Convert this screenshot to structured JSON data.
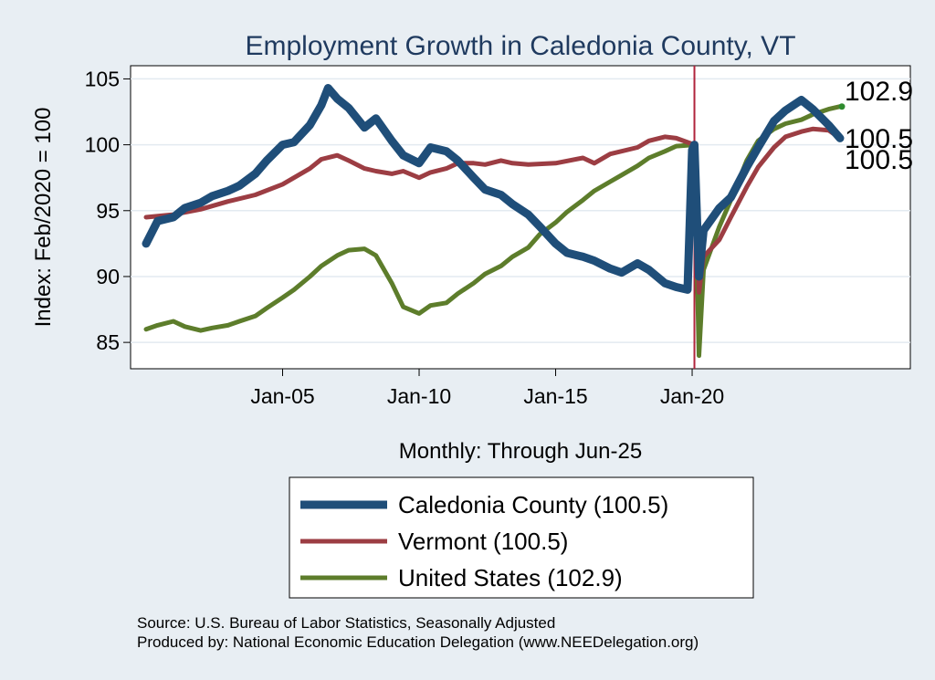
{
  "chart_data": {
    "type": "line",
    "title": "Employment Growth in Caledonia  County, VT",
    "xlabel": "Monthly: Through Jun-25",
    "ylabel": "Index: Feb/2020 = 100",
    "x_range": [
      "2000-01",
      "2025-06"
    ],
    "x_ticks": [
      {
        "date": "2005-01",
        "label": "Jan-05"
      },
      {
        "date": "2010-01",
        "label": "Jan-10"
      },
      {
        "date": "2015-01",
        "label": "Jan-15"
      },
      {
        "date": "2020-01",
        "label": "Jan-20"
      }
    ],
    "ylim": [
      83,
      106
    ],
    "y_ticks": [
      85,
      90,
      95,
      100,
      105
    ],
    "grid": "horizontal",
    "reference_line": {
      "date": "2020-02",
      "color": "#b0243c"
    },
    "series": [
      {
        "name": "Caledonia  County (100.5)",
        "color": "#1f4e79",
        "end_label": "100.5",
        "points": [
          [
            "2000-01",
            92.5
          ],
          [
            "2000-06",
            94.2
          ],
          [
            "2001-01",
            94.5
          ],
          [
            "2001-06",
            95.2
          ],
          [
            "2002-01",
            95.6
          ],
          [
            "2002-06",
            96.1
          ],
          [
            "2003-01",
            96.5
          ],
          [
            "2003-06",
            96.9
          ],
          [
            "2004-01",
            97.8
          ],
          [
            "2004-06",
            98.8
          ],
          [
            "2005-01",
            100.0
          ],
          [
            "2005-06",
            100.2
          ],
          [
            "2006-01",
            101.5
          ],
          [
            "2006-06",
            103.0
          ],
          [
            "2006-09",
            104.3
          ],
          [
            "2007-01",
            103.5
          ],
          [
            "2007-06",
            102.8
          ],
          [
            "2008-01",
            101.3
          ],
          [
            "2008-06",
            102.0
          ],
          [
            "2009-01",
            100.3
          ],
          [
            "2009-06",
            99.2
          ],
          [
            "2010-01",
            98.6
          ],
          [
            "2010-06",
            99.8
          ],
          [
            "2011-01",
            99.5
          ],
          [
            "2011-06",
            98.8
          ],
          [
            "2012-01",
            97.5
          ],
          [
            "2012-06",
            96.6
          ],
          [
            "2013-01",
            96.2
          ],
          [
            "2013-06",
            95.5
          ],
          [
            "2014-01",
            94.7
          ],
          [
            "2014-06",
            93.8
          ],
          [
            "2015-01",
            92.5
          ],
          [
            "2015-06",
            91.8
          ],
          [
            "2016-01",
            91.5
          ],
          [
            "2016-06",
            91.2
          ],
          [
            "2017-01",
            90.6
          ],
          [
            "2017-06",
            90.3
          ],
          [
            "2018-01",
            91.0
          ],
          [
            "2018-06",
            90.5
          ],
          [
            "2019-01",
            89.5
          ],
          [
            "2019-06",
            89.2
          ],
          [
            "2019-11",
            89.0
          ],
          [
            "2020-01",
            99.6
          ],
          [
            "2020-02",
            100.0
          ],
          [
            "2020-04",
            90.0
          ],
          [
            "2020-06",
            93.5
          ],
          [
            "2021-01",
            95.2
          ],
          [
            "2021-06",
            96.0
          ],
          [
            "2022-01",
            98.3
          ],
          [
            "2022-06",
            99.8
          ],
          [
            "2023-01",
            101.8
          ],
          [
            "2023-06",
            102.6
          ],
          [
            "2024-01",
            103.4
          ],
          [
            "2024-06",
            102.7
          ],
          [
            "2025-01",
            101.5
          ],
          [
            "2025-06",
            100.5
          ]
        ]
      },
      {
        "name": "Vermont (100.5)",
        "color": "#9c3d43",
        "end_label": "100.5",
        "points": [
          [
            "2000-01",
            94.5
          ],
          [
            "2001-01",
            94.7
          ],
          [
            "2002-01",
            95.1
          ],
          [
            "2003-01",
            95.7
          ],
          [
            "2004-01",
            96.2
          ],
          [
            "2005-01",
            97.0
          ],
          [
            "2006-01",
            98.2
          ],
          [
            "2006-06",
            98.9
          ],
          [
            "2007-01",
            99.2
          ],
          [
            "2007-06",
            98.8
          ],
          [
            "2008-01",
            98.2
          ],
          [
            "2008-06",
            98.0
          ],
          [
            "2009-01",
            97.8
          ],
          [
            "2009-06",
            98.0
          ],
          [
            "2010-01",
            97.5
          ],
          [
            "2010-06",
            97.9
          ],
          [
            "2011-01",
            98.2
          ],
          [
            "2011-06",
            98.6
          ],
          [
            "2012-01",
            98.6
          ],
          [
            "2012-06",
            98.5
          ],
          [
            "2013-01",
            98.8
          ],
          [
            "2013-06",
            98.6
          ],
          [
            "2014-01",
            98.5
          ],
          [
            "2015-01",
            98.6
          ],
          [
            "2016-01",
            99.0
          ],
          [
            "2016-06",
            98.6
          ],
          [
            "2017-01",
            99.3
          ],
          [
            "2018-01",
            99.8
          ],
          [
            "2018-06",
            100.3
          ],
          [
            "2019-01",
            100.6
          ],
          [
            "2019-06",
            100.5
          ],
          [
            "2020-02",
            100.0
          ],
          [
            "2020-04",
            88.8
          ],
          [
            "2020-06",
            91.5
          ],
          [
            "2021-01",
            92.8
          ],
          [
            "2021-06",
            94.5
          ],
          [
            "2022-01",
            96.8
          ],
          [
            "2022-06",
            98.3
          ],
          [
            "2023-01",
            99.8
          ],
          [
            "2023-06",
            100.6
          ],
          [
            "2024-01",
            101.0
          ],
          [
            "2024-06",
            101.2
          ],
          [
            "2025-01",
            101.1
          ],
          [
            "2025-06",
            100.5
          ]
        ]
      },
      {
        "name": "United States (102.9)",
        "color": "#5d7d2b",
        "end_label": "102.9",
        "points": [
          [
            "2000-01",
            86.0
          ],
          [
            "2000-06",
            86.3
          ],
          [
            "2001-01",
            86.6
          ],
          [
            "2001-06",
            86.2
          ],
          [
            "2002-01",
            85.9
          ],
          [
            "2002-06",
            86.1
          ],
          [
            "2003-01",
            86.3
          ],
          [
            "2003-06",
            86.6
          ],
          [
            "2004-01",
            87.0
          ],
          [
            "2004-06",
            87.6
          ],
          [
            "2005-01",
            88.4
          ],
          [
            "2005-06",
            89.0
          ],
          [
            "2006-01",
            90.0
          ],
          [
            "2006-06",
            90.8
          ],
          [
            "2007-01",
            91.6
          ],
          [
            "2007-06",
            92.0
          ],
          [
            "2008-01",
            92.1
          ],
          [
            "2008-06",
            91.6
          ],
          [
            "2009-01",
            89.5
          ],
          [
            "2009-06",
            87.7
          ],
          [
            "2010-01",
            87.2
          ],
          [
            "2010-06",
            87.8
          ],
          [
            "2011-01",
            88.0
          ],
          [
            "2011-06",
            88.7
          ],
          [
            "2012-01",
            89.5
          ],
          [
            "2012-06",
            90.2
          ],
          [
            "2013-01",
            90.8
          ],
          [
            "2013-06",
            91.5
          ],
          [
            "2014-01",
            92.2
          ],
          [
            "2014-06",
            93.2
          ],
          [
            "2015-01",
            94.1
          ],
          [
            "2015-06",
            94.9
          ],
          [
            "2016-01",
            95.8
          ],
          [
            "2016-06",
            96.5
          ],
          [
            "2017-01",
            97.2
          ],
          [
            "2017-06",
            97.7
          ],
          [
            "2018-01",
            98.4
          ],
          [
            "2018-06",
            99.0
          ],
          [
            "2019-01",
            99.5
          ],
          [
            "2019-06",
            99.9
          ],
          [
            "2020-02",
            100.0
          ],
          [
            "2020-04",
            84.0
          ],
          [
            "2020-06",
            90.5
          ],
          [
            "2021-01",
            93.8
          ],
          [
            "2021-06",
            95.8
          ],
          [
            "2022-01",
            98.8
          ],
          [
            "2022-06",
            100.3
          ],
          [
            "2023-01",
            101.2
          ],
          [
            "2023-06",
            101.6
          ],
          [
            "2024-01",
            101.9
          ],
          [
            "2024-06",
            102.3
          ],
          [
            "2025-01",
            102.7
          ],
          [
            "2025-06",
            102.9
          ]
        ]
      }
    ]
  },
  "notes": {
    "source": "Source: U.S. Bureau of Labor Statistics, Seasonally Adjusted",
    "produced_by": "Produced by: National Economic Education Delegation (www.NEEDelegation.org)"
  }
}
